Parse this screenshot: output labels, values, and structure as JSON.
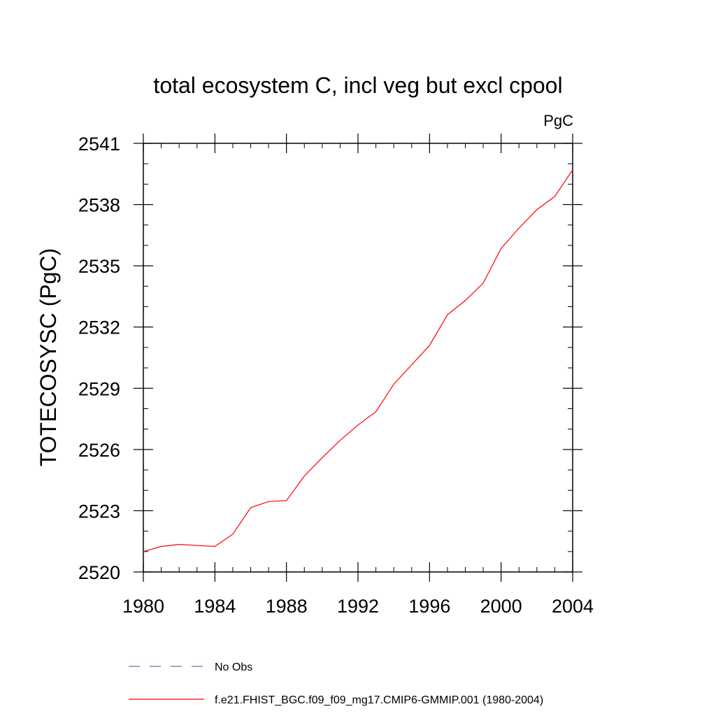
{
  "chart_data": {
    "type": "line",
    "title": "total ecosystem C, incl veg but excl cpool",
    "units": "PgC",
    "ylabel": "TOTECOSYSC  (PgC)",
    "xlabel": "",
    "xlim": [
      1980,
      2004
    ],
    "ylim": [
      2520,
      2541
    ],
    "xticks": [
      1980,
      1984,
      1988,
      1992,
      1996,
      2000,
      2004
    ],
    "yticks": [
      2520,
      2523,
      2526,
      2529,
      2532,
      2535,
      2538,
      2541
    ],
    "grid": false,
    "legend_position": "bottom",
    "series": [
      {
        "name": "No Obs",
        "color": "#7b68b5",
        "dash": "dashed",
        "x": [],
        "y": []
      },
      {
        "name": "f.e21.FHIST_BGC.f09_f09_mg17.CMIP6-GMMIP.001 (1980-2004)",
        "color": "#ff0000",
        "dash": "solid",
        "x": [
          1980,
          1981,
          1982,
          1983,
          1984,
          1985,
          1986,
          1987,
          1988,
          1989,
          1990,
          1991,
          1992,
          1993,
          1994,
          1995,
          1996,
          1997,
          1998,
          1999,
          2000,
          2001,
          2002,
          2003,
          2004
        ],
        "y": [
          2521.0,
          2521.25,
          2521.35,
          2521.3,
          2521.25,
          2521.85,
          2523.15,
          2523.45,
          2523.5,
          2524.7,
          2525.6,
          2526.45,
          2527.2,
          2527.85,
          2529.2,
          2530.15,
          2531.1,
          2532.6,
          2533.3,
          2534.15,
          2535.85,
          2536.85,
          2537.75,
          2538.4,
          2539.7
        ]
      }
    ]
  }
}
